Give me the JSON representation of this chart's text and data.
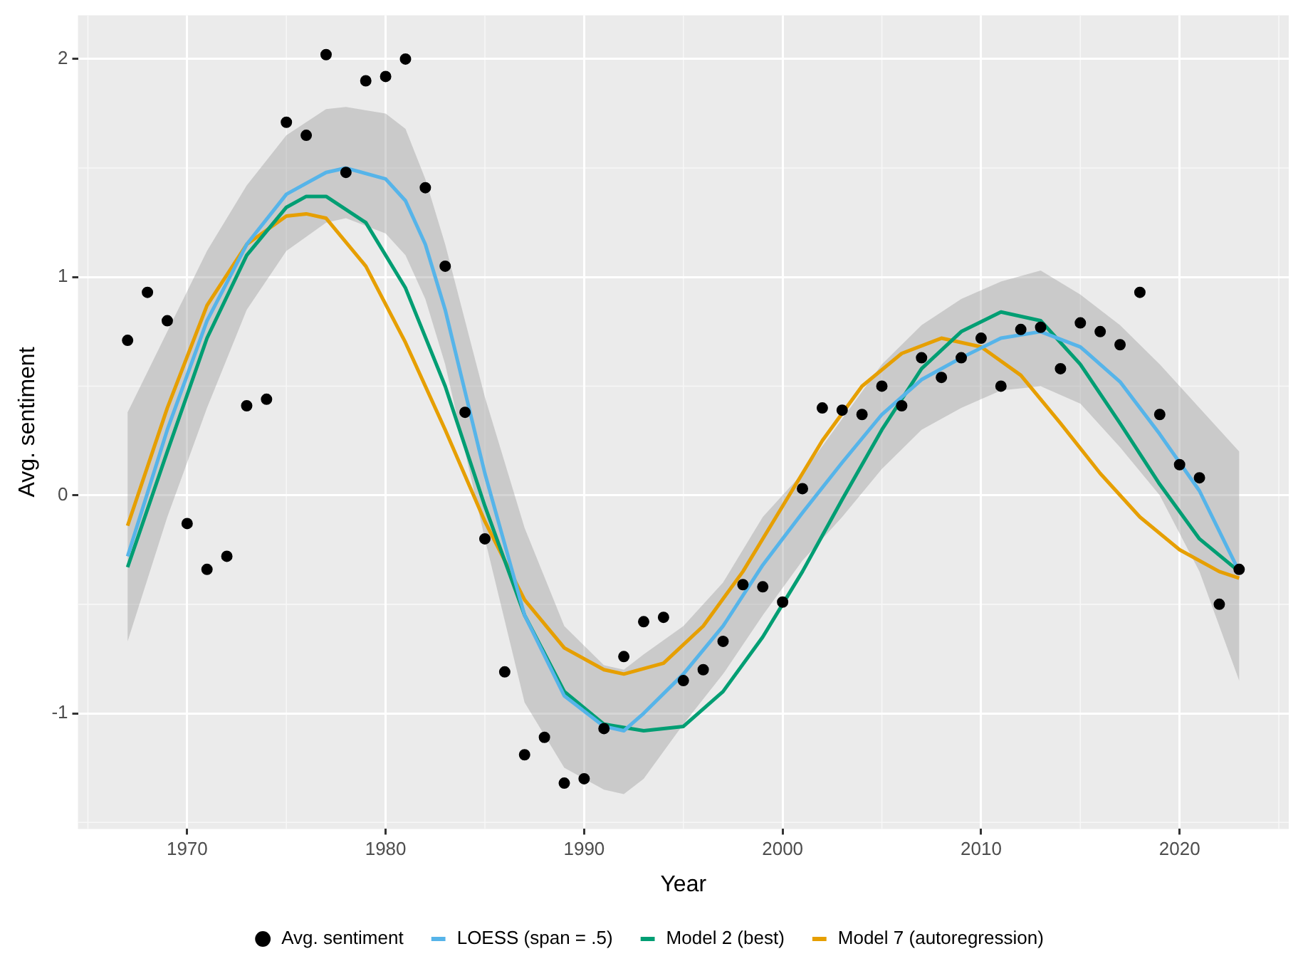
{
  "chart_data": {
    "type": "line",
    "xlabel": "Year",
    "ylabel": "Avg. sentiment",
    "xlim": [
      1964.5,
      2025.5
    ],
    "xticks": [
      1970,
      1980,
      1990,
      2000,
      2010,
      2020
    ],
    "ylim": [
      -1.53,
      2.2
    ],
    "yticks": [
      -1,
      0,
      1,
      2
    ],
    "grid": true,
    "legend": "bottom",
    "series": [
      {
        "name": "Avg. sentiment",
        "type": "scatter",
        "marker": "circle",
        "color": "#000000",
        "x": [
          1967,
          1968,
          1969,
          1970,
          1971,
          1972,
          1973,
          1974,
          1975,
          1976,
          1977,
          1978,
          1979,
          1980,
          1981,
          1982,
          1983,
          1984,
          1985,
          1986,
          1987,
          1988,
          1989,
          1990,
          1991,
          1992,
          1993,
          1994,
          1995,
          1996,
          1997,
          1998,
          1999,
          2000,
          2001,
          2002,
          2003,
          2004,
          2005,
          2006,
          2007,
          2008,
          2009,
          2010,
          2011,
          2012,
          2013,
          2014,
          2015,
          2016,
          2017,
          2018,
          2019,
          2020,
          2021,
          2022,
          2023
        ],
        "values": [
          0.71,
          0.93,
          0.8,
          -0.13,
          -0.34,
          -0.28,
          0.41,
          0.44,
          1.71,
          1.65,
          2.02,
          1.48,
          1.9,
          1.92,
          2.0,
          1.41,
          1.05,
          0.38,
          -0.2,
          -0.81,
          -1.19,
          -1.11,
          -1.32,
          -1.3,
          -1.07,
          -0.74,
          -0.58,
          -0.56,
          -0.85,
          -0.8,
          -0.67,
          -0.41,
          -0.42,
          -0.49,
          0.03,
          0.4,
          0.39,
          0.37,
          0.5,
          0.41,
          0.63,
          0.54,
          0.63,
          0.72,
          0.5,
          0.76,
          0.77,
          0.58,
          0.79,
          0.75,
          0.69,
          0.93,
          0.37,
          0.14,
          0.08,
          -0.5,
          -0.34
        ]
      },
      {
        "name": "LOESS (span = .5)",
        "color": "#56b4e9",
        "x": [
          1967,
          1969,
          1971,
          1973,
          1975,
          1977,
          1978,
          1980,
          1981,
          1982,
          1983,
          1985,
          1987,
          1989,
          1991,
          1992,
          1993,
          1995,
          1997,
          1999,
          2001,
          2003,
          2005,
          2007,
          2009,
          2011,
          2013,
          2015,
          2017,
          2019,
          2021,
          2023
        ],
        "values": [
          -0.28,
          0.3,
          0.8,
          1.15,
          1.38,
          1.48,
          1.5,
          1.45,
          1.35,
          1.15,
          0.85,
          0.1,
          -0.55,
          -0.92,
          -1.06,
          -1.08,
          -1.0,
          -0.82,
          -0.6,
          -0.32,
          -0.08,
          0.15,
          0.37,
          0.53,
          0.63,
          0.72,
          0.75,
          0.68,
          0.52,
          0.28,
          0.02,
          -0.35
        ],
        "lower": [
          -0.67,
          -0.1,
          0.4,
          0.85,
          1.12,
          1.25,
          1.27,
          1.2,
          1.1,
          0.9,
          0.6,
          -0.2,
          -0.95,
          -1.25,
          -1.35,
          -1.37,
          -1.3,
          -1.05,
          -0.82,
          -0.55,
          -0.3,
          -0.1,
          0.12,
          0.3,
          0.4,
          0.48,
          0.5,
          0.42,
          0.22,
          0.0,
          -0.35,
          -0.85
        ],
        "upper": [
          0.38,
          0.75,
          1.12,
          1.42,
          1.65,
          1.77,
          1.78,
          1.75,
          1.68,
          1.45,
          1.15,
          0.45,
          -0.15,
          -0.6,
          -0.78,
          -0.8,
          -0.73,
          -0.6,
          -0.4,
          -0.1,
          0.1,
          0.35,
          0.6,
          0.78,
          0.9,
          0.98,
          1.03,
          0.92,
          0.78,
          0.6,
          0.4,
          0.2
        ]
      },
      {
        "name": "Model 2 (best)",
        "color": "#009e73",
        "x": [
          1967,
          1969,
          1971,
          1973,
          1975,
          1976,
          1977,
          1979,
          1981,
          1983,
          1985,
          1987,
          1989,
          1991,
          1993,
          1995,
          1997,
          1999,
          2001,
          2003,
          2005,
          2007,
          2009,
          2011,
          2013,
          2015,
          2017,
          2019,
          2021,
          2023
        ],
        "values": [
          -0.33,
          0.2,
          0.72,
          1.1,
          1.32,
          1.37,
          1.37,
          1.25,
          0.95,
          0.5,
          -0.05,
          -0.55,
          -0.9,
          -1.05,
          -1.08,
          -1.06,
          -0.9,
          -0.65,
          -0.35,
          -0.02,
          0.3,
          0.58,
          0.75,
          0.84,
          0.8,
          0.6,
          0.33,
          0.05,
          -0.2,
          -0.35
        ]
      },
      {
        "name": "Model 7 (autoregression)",
        "color": "#e69f00",
        "x": [
          1967,
          1969,
          1971,
          1973,
          1975,
          1976,
          1977,
          1979,
          1981,
          1983,
          1985,
          1987,
          1989,
          1991,
          1992,
          1994,
          1996,
          1998,
          2000,
          2002,
          2004,
          2006,
          2008,
          2010,
          2012,
          2014,
          2016,
          2018,
          2020,
          2022,
          2023
        ],
        "values": [
          -0.14,
          0.4,
          0.87,
          1.15,
          1.28,
          1.29,
          1.27,
          1.05,
          0.7,
          0.3,
          -0.12,
          -0.48,
          -0.7,
          -0.8,
          -0.82,
          -0.77,
          -0.6,
          -0.35,
          -0.05,
          0.25,
          0.5,
          0.65,
          0.72,
          0.68,
          0.55,
          0.33,
          0.1,
          -0.1,
          -0.25,
          -0.35,
          -0.38
        ]
      }
    ]
  }
}
